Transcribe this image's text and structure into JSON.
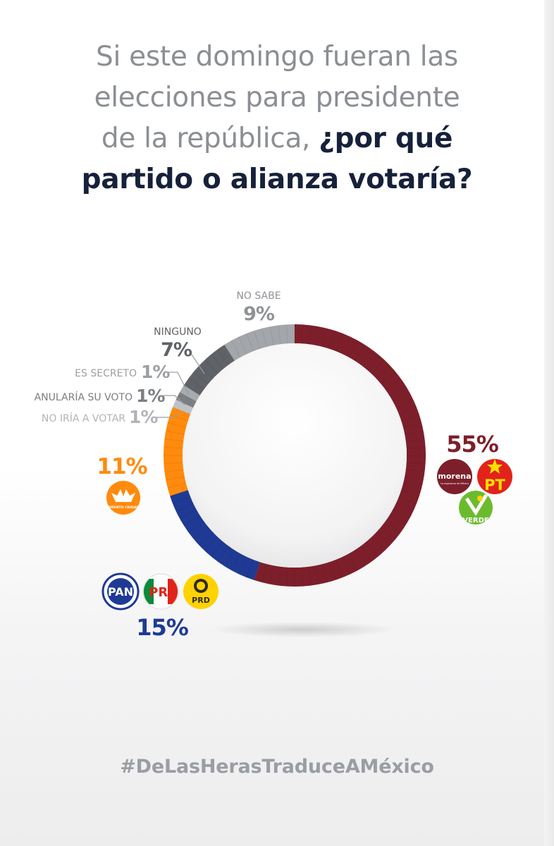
{
  "title": {
    "line1": "Si este domingo fueran las",
    "line2": "elecciones para presidente",
    "line3_plain": "de la república, ",
    "line3_bold": "¿por qué",
    "line4_bold": "partido o alianza votaría?"
  },
  "hashtag": "#DeLasHerasTraduceAMéxico",
  "chart_data": {
    "type": "pie",
    "donut": true,
    "title": "",
    "slices": [
      {
        "label": "",
        "value": 55,
        "value_label": "55%",
        "color": "#7d1f2b"
      },
      {
        "label": "",
        "value": 15,
        "value_label": "15%",
        "color": "#1f3a94"
      },
      {
        "label": "",
        "value": 11,
        "value_label": "11%",
        "color": "#ff8a0d"
      },
      {
        "label": "NO IRÍA A VOTAR",
        "value": 1,
        "value_label": "1%",
        "color": "#bfc2c6"
      },
      {
        "label": "ANULARÍA SU VOTO",
        "value": 1,
        "value_label": "1%",
        "color": "#7b7e82"
      },
      {
        "label": "ES SECRETO",
        "value": 1,
        "value_label": "1%",
        "color": "#a7aaae"
      },
      {
        "label": "NINGUNO",
        "value": 7,
        "value_label": "7%",
        "color": "#5f6266"
      },
      {
        "label": "NO SABE",
        "value": 9,
        "value_label": "9%",
        "color": "#a3a6aa"
      }
    ],
    "parties": {
      "morena_alliance": {
        "logos": [
          "morena",
          "PT",
          "VERDE"
        ],
        "tagline": "La esperanza de México"
      },
      "pan_alliance": {
        "logos": [
          "PAN",
          "PRI",
          "PRD"
        ]
      },
      "mc": {
        "logos": [
          "MOVIMIENTO CIUDADANO"
        ]
      }
    }
  }
}
